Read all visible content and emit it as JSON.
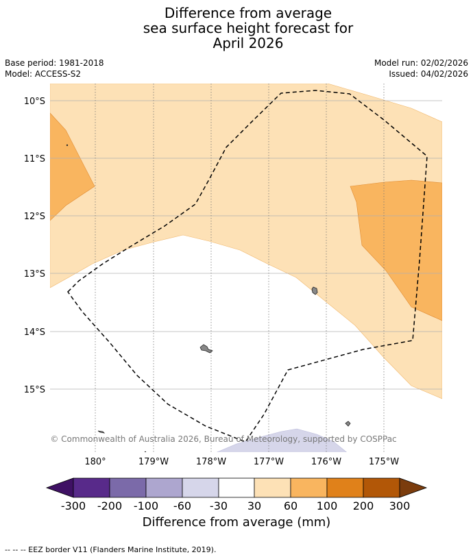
{
  "header": {
    "title_line1": "Difference from average",
    "title_line2": "sea surface height forecast for",
    "title_line3": "April 2026",
    "base_period": "Base period: 1981-2018",
    "model": "Model: ACCESS-S2",
    "model_run": "Model run: 02/02/2026",
    "issued": "Issued: 04/02/2026"
  },
  "map": {
    "lat_labels": [
      "10°S",
      "11°S",
      "12°S",
      "13°S",
      "14°S",
      "15°S"
    ],
    "lon_labels": [
      "180°",
      "179°W",
      "178°W",
      "177°W",
      "176°W",
      "175°W"
    ],
    "copyright": "© Commonwealth of Australia 2026, Bureau of Meteorology, supported by COSPPac"
  },
  "colorbar": {
    "ticks": [
      "-300",
      "-200",
      "-100",
      "-60",
      "-30",
      "30",
      "60",
      "100",
      "200",
      "300"
    ],
    "colors": [
      "#3f1164",
      "#582a8a",
      "#7b6aa9",
      "#ada6cf",
      "#d6d6ea",
      "#ffffff",
      "#fde1b6",
      "#f9b55f",
      "#e0811a",
      "#b25707",
      "#7b3c0d"
    ],
    "title": "Difference from average (mm)"
  },
  "legend": {
    "eez_text": "--  --  -- EEZ border V11 (Flanders Marine Institute, 2019)."
  }
}
